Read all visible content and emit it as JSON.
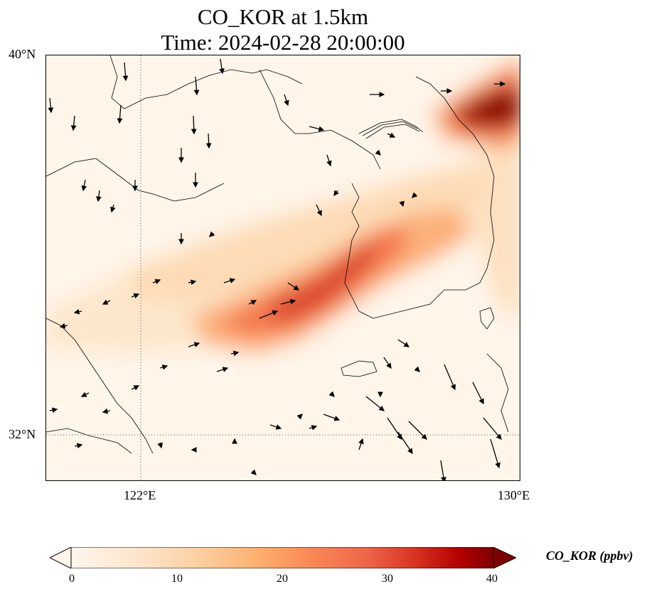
{
  "title_line1": "CO_KOR at 1.5km",
  "title_line2": "Time: 2024-02-28 20:00:00",
  "lat_labels": [
    "40°N",
    "32°N"
  ],
  "lon_labels": [
    "122°E",
    "130°E"
  ],
  "colorbar": {
    "label": "CO_KOR (ppbv)",
    "ticks": [
      "0",
      "10",
      "20",
      "30",
      "40"
    ],
    "range": [
      0,
      40
    ],
    "extend": "both",
    "colormap": [
      "#fff5eb",
      "#fee6ce",
      "#fdd0a2",
      "#fdae6b",
      "#fd8d3c",
      "#f16913",
      "#d94801",
      "#a63603",
      "#7f2704"
    ],
    "palette_name": "OrRd"
  },
  "map": {
    "lon_range": [
      120,
      130
    ],
    "lat_range": [
      31,
      40
    ],
    "gridlines": {
      "lon": [
        122
      ],
      "lat": [
        32
      ],
      "style": "dotted"
    }
  }
}
